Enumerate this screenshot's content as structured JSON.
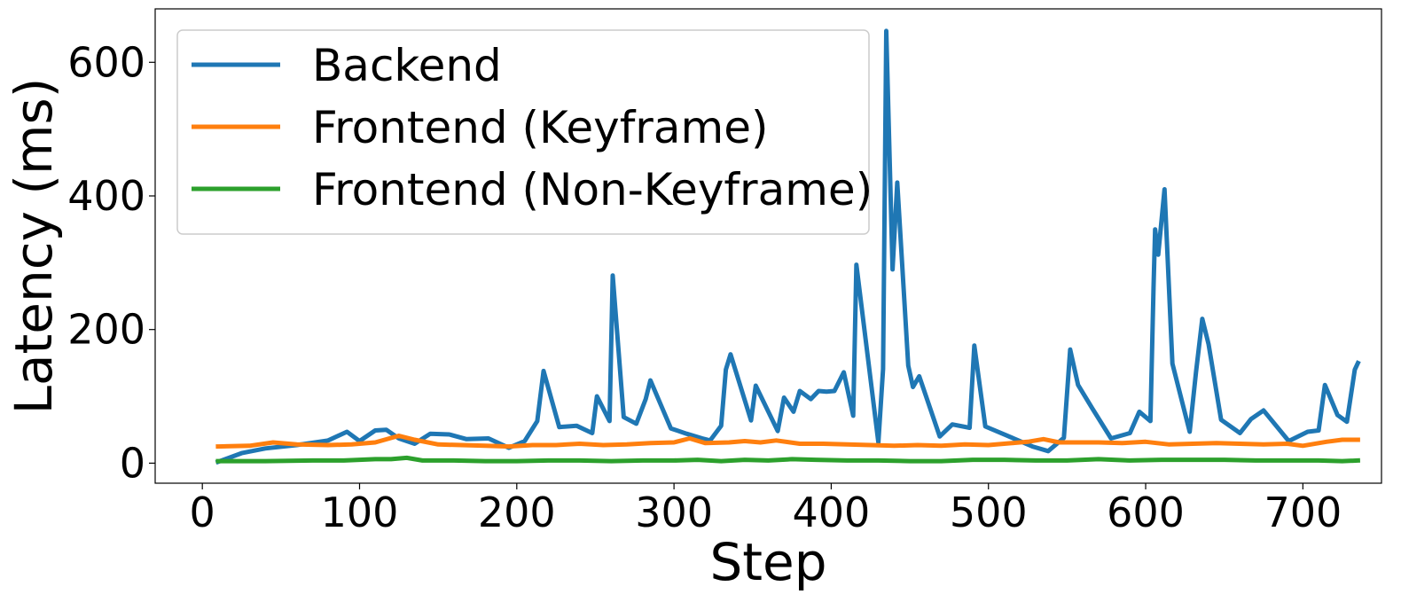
{
  "chart_data": {
    "type": "line",
    "xlabel": "Step",
    "ylabel": "Latency (ms)",
    "xlim": [
      -30,
      750
    ],
    "ylim": [
      -30,
      680
    ],
    "xticks": [
      0,
      100,
      200,
      300,
      400,
      500,
      600,
      700
    ],
    "yticks": [
      0,
      200,
      400,
      600
    ],
    "grid": false,
    "legend_position": "top-left",
    "series": [
      {
        "name": "Backend",
        "color": "#1f77b4",
        "points": [
          [
            10,
            2
          ],
          [
            25,
            15
          ],
          [
            40,
            22
          ],
          [
            60,
            27
          ],
          [
            80,
            34
          ],
          [
            92,
            47
          ],
          [
            100,
            33
          ],
          [
            110,
            49
          ],
          [
            117,
            50
          ],
          [
            125,
            37
          ],
          [
            135,
            29
          ],
          [
            145,
            44
          ],
          [
            157,
            43
          ],
          [
            168,
            36
          ],
          [
            182,
            37
          ],
          [
            195,
            23
          ],
          [
            205,
            33
          ],
          [
            213,
            63
          ],
          [
            217,
            138
          ],
          [
            227,
            54
          ],
          [
            238,
            56
          ],
          [
            248,
            45
          ],
          [
            251,
            100
          ],
          [
            259,
            63
          ],
          [
            261,
            281
          ],
          [
            268,
            69
          ],
          [
            276,
            59
          ],
          [
            282,
            96
          ],
          [
            285,
            124
          ],
          [
            298,
            52
          ],
          [
            308,
            44
          ],
          [
            318,
            37
          ],
          [
            323,
            34
          ],
          [
            330,
            56
          ],
          [
            333,
            140
          ],
          [
            336,
            163
          ],
          [
            349,
            64
          ],
          [
            352,
            116
          ],
          [
            366,
            48
          ],
          [
            370,
            98
          ],
          [
            376,
            77
          ],
          [
            380,
            108
          ],
          [
            387,
            96
          ],
          [
            392,
            108
          ],
          [
            397,
            107
          ],
          [
            402,
            108
          ],
          [
            408,
            136
          ],
          [
            414,
            71
          ],
          [
            416,
            297
          ],
          [
            430,
            31
          ],
          [
            433,
            141
          ],
          [
            435,
            647
          ],
          [
            439,
            290
          ],
          [
            442,
            420
          ],
          [
            449,
            146
          ],
          [
            452,
            114
          ],
          [
            456,
            130
          ],
          [
            469,
            40
          ],
          [
            477,
            58
          ],
          [
            488,
            53
          ],
          [
            491,
            176
          ],
          [
            498,
            55
          ],
          [
            511,
            42
          ],
          [
            528,
            25
          ],
          [
            538,
            18
          ],
          [
            548,
            38
          ],
          [
            552,
            170
          ],
          [
            557,
            117
          ],
          [
            566,
            82
          ],
          [
            578,
            37
          ],
          [
            590,
            45
          ],
          [
            596,
            77
          ],
          [
            603,
            63
          ],
          [
            605,
            262
          ],
          [
            606,
            350
          ],
          [
            608,
            312
          ],
          [
            612,
            410
          ],
          [
            617,
            149
          ],
          [
            628,
            47
          ],
          [
            632,
            136
          ],
          [
            636,
            216
          ],
          [
            640,
            178
          ],
          [
            648,
            65
          ],
          [
            660,
            45
          ],
          [
            667,
            66
          ],
          [
            675,
            79
          ],
          [
            691,
            33
          ],
          [
            703,
            47
          ],
          [
            710,
            49
          ],
          [
            714,
            117
          ],
          [
            722,
            72
          ],
          [
            728,
            62
          ],
          [
            733,
            140
          ],
          [
            735,
            150
          ]
        ]
      },
      {
        "name": "Frontend (Keyframe)",
        "color": "#ff7f0e",
        "points": [
          [
            10,
            25
          ],
          [
            30,
            26
          ],
          [
            45,
            31
          ],
          [
            60,
            28
          ],
          [
            80,
            27
          ],
          [
            95,
            28
          ],
          [
            110,
            31
          ],
          [
            125,
            41
          ],
          [
            135,
            35
          ],
          [
            150,
            28
          ],
          [
            165,
            27
          ],
          [
            180,
            26
          ],
          [
            195,
            25
          ],
          [
            210,
            27
          ],
          [
            225,
            27
          ],
          [
            240,
            29
          ],
          [
            255,
            27
          ],
          [
            270,
            28
          ],
          [
            285,
            30
          ],
          [
            300,
            31
          ],
          [
            310,
            37
          ],
          [
            320,
            30
          ],
          [
            335,
            31
          ],
          [
            345,
            33
          ],
          [
            355,
            31
          ],
          [
            365,
            34
          ],
          [
            380,
            29
          ],
          [
            395,
            29
          ],
          [
            410,
            28
          ],
          [
            425,
            27
          ],
          [
            440,
            26
          ],
          [
            455,
            27
          ],
          [
            470,
            26
          ],
          [
            485,
            28
          ],
          [
            500,
            27
          ],
          [
            515,
            30
          ],
          [
            525,
            32
          ],
          [
            535,
            36
          ],
          [
            545,
            31
          ],
          [
            555,
            31
          ],
          [
            570,
            31
          ],
          [
            585,
            30
          ],
          [
            600,
            32
          ],
          [
            615,
            28
          ],
          [
            630,
            29
          ],
          [
            645,
            30
          ],
          [
            660,
            29
          ],
          [
            675,
            28
          ],
          [
            690,
            29
          ],
          [
            700,
            26
          ],
          [
            715,
            32
          ],
          [
            725,
            35
          ],
          [
            735,
            35
          ]
        ]
      },
      {
        "name": "Frontend (Non-Keyframe)",
        "color": "#2ca02c",
        "points": [
          [
            10,
            3
          ],
          [
            40,
            3
          ],
          [
            70,
            4
          ],
          [
            90,
            4
          ],
          [
            110,
            6
          ],
          [
            120,
            6
          ],
          [
            130,
            8
          ],
          [
            140,
            4
          ],
          [
            160,
            4
          ],
          [
            180,
            3
          ],
          [
            200,
            3
          ],
          [
            220,
            4
          ],
          [
            240,
            4
          ],
          [
            260,
            3
          ],
          [
            280,
            4
          ],
          [
            300,
            4
          ],
          [
            315,
            5
          ],
          [
            330,
            3
          ],
          [
            345,
            5
          ],
          [
            360,
            4
          ],
          [
            375,
            6
          ],
          [
            390,
            5
          ],
          [
            410,
            4
          ],
          [
            430,
            4
          ],
          [
            450,
            3
          ],
          [
            470,
            3
          ],
          [
            490,
            5
          ],
          [
            510,
            5
          ],
          [
            530,
            4
          ],
          [
            550,
            4
          ],
          [
            570,
            6
          ],
          [
            590,
            4
          ],
          [
            610,
            5
          ],
          [
            630,
            5
          ],
          [
            650,
            5
          ],
          [
            670,
            4
          ],
          [
            690,
            4
          ],
          [
            710,
            4
          ],
          [
            725,
            3
          ],
          [
            735,
            4
          ]
        ]
      }
    ]
  }
}
